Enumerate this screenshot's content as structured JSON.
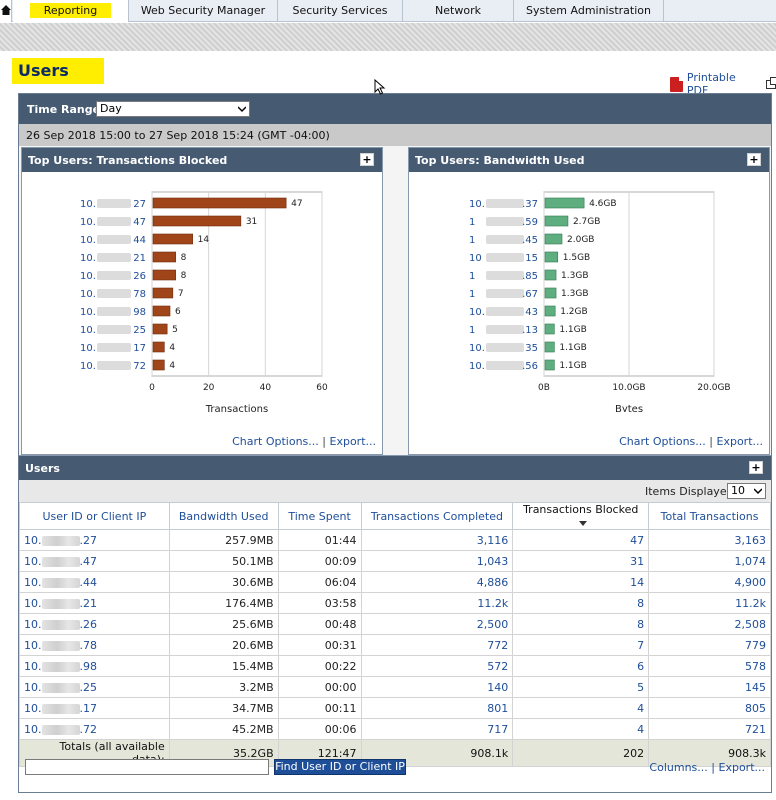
{
  "nav": {
    "tabs": [
      {
        "label": "Reporting",
        "active": true
      },
      {
        "label": "Web Security Manager"
      },
      {
        "label": "Security Services"
      },
      {
        "label": "Network"
      },
      {
        "label": "System Administration"
      }
    ]
  },
  "page": {
    "title": "Users",
    "printable_pdf": "Printable PDF"
  },
  "time_range": {
    "label": "Time Range:",
    "value": "Day",
    "date_range": "26 Sep 2018 15:00 to 27 Sep 2018 15:24 (GMT -04:00)"
  },
  "charts": {
    "chart_options": "Chart Options...",
    "export": "Export...",
    "separator": "|"
  },
  "chart_data": [
    {
      "type": "bar",
      "orientation": "horizontal",
      "title": "Top Users: Transactions Blocked",
      "xlabel": "Transactions",
      "xlim": [
        0,
        60
      ],
      "xticks": [
        "0",
        "20",
        "40",
        "60"
      ],
      "categories": [
        "10.▒▒▒.27",
        "10.▒▒▒.47",
        "10.▒▒▒.44",
        "10.▒▒▒.21",
        "10.▒▒▒.26",
        "10.▒▒▒.78",
        "10.▒▒▒.98",
        "10.▒▒▒.25",
        "10.▒▒▒.17",
        "10.▒▒▒.72"
      ],
      "category_prefix": [
        "10.",
        "10.",
        "10.",
        "10.",
        "10.",
        "10.",
        "10.",
        "10.",
        "10.",
        "10."
      ],
      "category_suffix": [
        "27",
        "47",
        "44",
        "21",
        "26",
        "78",
        "98",
        "25",
        "17",
        "72"
      ],
      "values": [
        47,
        31,
        14,
        8,
        8,
        7,
        6,
        5,
        4,
        4
      ],
      "labels": [
        "47",
        "31",
        "14",
        "8",
        "8",
        "7",
        "6",
        "5",
        "4",
        "4"
      ],
      "color": "#a0451a"
    },
    {
      "type": "bar",
      "orientation": "horizontal",
      "title": "Top Users: Bandwidth Used",
      "xlabel": "Bytes",
      "xlim": [
        0,
        20
      ],
      "xticks": [
        "0B",
        "10.0GB",
        "20.0GB"
      ],
      "categories": [
        "10.▒▒▒.37",
        "1▒▒▒.59",
        "1▒▒▒.45",
        "10▒▒▒15",
        "1▒▒▒.85",
        "1▒▒▒.67",
        "10.▒▒▒43",
        "1▒▒▒.13",
        "10.▒▒▒35",
        "10.▒▒▒.56"
      ],
      "category_prefix": [
        "10.",
        "1",
        "1",
        "10",
        "1",
        "1",
        "10.",
        "1",
        "10.",
        "10."
      ],
      "category_suffix": [
        ".37",
        ".59",
        ".45",
        "15",
        ".85",
        ".67",
        "43",
        ".13",
        "35",
        ".56"
      ],
      "values": [
        4.6,
        2.7,
        2.0,
        1.5,
        1.3,
        1.3,
        1.2,
        1.1,
        1.1,
        1.1
      ],
      "labels": [
        "4.6GB",
        "2.7GB",
        "2.0GB",
        "1.5GB",
        "1.3GB",
        "1.3GB",
        "1.2GB",
        "1.1GB",
        "1.1GB",
        "1.1GB"
      ],
      "color": "#5fae7f"
    }
  ],
  "users": {
    "title": "Users",
    "items_displayed_label": "Items Displayed",
    "items_displayed_value": "10",
    "columns": [
      "User ID or Client IP",
      "Bandwidth Used",
      "Time Spent",
      "Transactions Completed",
      "Transactions Blocked",
      "Total Transactions"
    ],
    "rows": [
      {
        "ip_prefix": "10.",
        "ip_suffix": ".27",
        "bandwidth": "257.9MB",
        "time": "01:44",
        "completed": "3,116",
        "blocked": "47",
        "total": "3,163"
      },
      {
        "ip_prefix": "10.",
        "ip_suffix": ".47",
        "bandwidth": "50.1MB",
        "time": "00:09",
        "completed": "1,043",
        "blocked": "31",
        "total": "1,074"
      },
      {
        "ip_prefix": "10.",
        "ip_suffix": ".44",
        "bandwidth": "30.6MB",
        "time": "06:04",
        "completed": "4,886",
        "blocked": "14",
        "total": "4,900"
      },
      {
        "ip_prefix": "10.",
        "ip_suffix": ".21",
        "bandwidth": "176.4MB",
        "time": "03:58",
        "completed": "11.2k",
        "blocked": "8",
        "total": "11.2k"
      },
      {
        "ip_prefix": "10.",
        "ip_suffix": ".26",
        "bandwidth": "25.6MB",
        "time": "00:48",
        "completed": "2,500",
        "blocked": "8",
        "total": "2,508"
      },
      {
        "ip_prefix": "10.",
        "ip_suffix": ".78",
        "bandwidth": "20.6MB",
        "time": "00:31",
        "completed": "772",
        "blocked": "7",
        "total": "779"
      },
      {
        "ip_prefix": "10.",
        "ip_suffix": ".98",
        "bandwidth": "15.4MB",
        "time": "00:22",
        "completed": "572",
        "blocked": "6",
        "total": "578"
      },
      {
        "ip_prefix": "10.",
        "ip_suffix": ".25",
        "bandwidth": "3.2MB",
        "time": "00:00",
        "completed": "140",
        "blocked": "5",
        "total": "145"
      },
      {
        "ip_prefix": "10.",
        "ip_suffix": ".17",
        "bandwidth": "34.7MB",
        "time": "00:11",
        "completed": "801",
        "blocked": "4",
        "total": "805"
      },
      {
        "ip_prefix": "10.",
        "ip_suffix": ".72",
        "bandwidth": "45.2MB",
        "time": "00:06",
        "completed": "717",
        "blocked": "4",
        "total": "721"
      }
    ],
    "totals": {
      "label": "Totals (all available data):",
      "bandwidth": "35.2GB",
      "time": "121:47",
      "completed": "908.1k",
      "blocked": "202",
      "total": "908.3k"
    },
    "find_button": "Find User ID or Client IP",
    "columns_link": "Columns...",
    "export_link": "Export..."
  },
  "colors": {
    "header_bg": "#465a72",
    "link": "#1f4e99",
    "highlight": "#ffee00",
    "blocked_bar": "#a0451a",
    "bandwidth_bar": "#5fae7f"
  },
  "icons": [
    "home-icon",
    "pdf-icon",
    "popout-icon",
    "expand-plus-icon",
    "sort-desc-icon",
    "mouse-pointer-icon",
    "chevron-down-icon"
  ]
}
